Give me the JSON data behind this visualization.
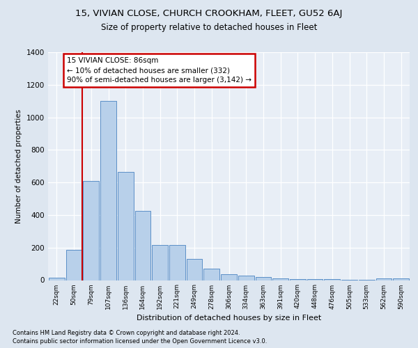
{
  "title1": "15, VIVIAN CLOSE, CHURCH CROOKHAM, FLEET, GU52 6AJ",
  "title2": "Size of property relative to detached houses in Fleet",
  "xlabel": "Distribution of detached houses by size in Fleet",
  "ylabel": "Number of detached properties",
  "categories": [
    "22sqm",
    "50sqm",
    "79sqm",
    "107sqm",
    "136sqm",
    "164sqm",
    "192sqm",
    "221sqm",
    "249sqm",
    "278sqm",
    "306sqm",
    "334sqm",
    "363sqm",
    "391sqm",
    "420sqm",
    "448sqm",
    "476sqm",
    "505sqm",
    "533sqm",
    "562sqm",
    "590sqm"
  ],
  "values": [
    15,
    185,
    610,
    1100,
    665,
    425,
    215,
    215,
    130,
    70,
    38,
    28,
    20,
    12,
    8,
    5,
    5,
    3,
    3,
    10,
    10
  ],
  "bar_color": "#b8d0ea",
  "bar_edge_color": "#5b8fc7",
  "vline_color": "#cc0000",
  "annotation_text": "15 VIVIAN CLOSE: 86sqm\n← 10% of detached houses are smaller (332)\n90% of semi-detached houses are larger (3,142) →",
  "annotation_box_color": "#ffffff",
  "annotation_box_edge": "#cc0000",
  "ylim": [
    0,
    1400
  ],
  "yticks": [
    0,
    200,
    400,
    600,
    800,
    1000,
    1200,
    1400
  ],
  "footer1": "Contains HM Land Registry data © Crown copyright and database right 2024.",
  "footer2": "Contains public sector information licensed under the Open Government Licence v3.0.",
  "bg_color": "#dde6f0",
  "plot_bg_color": "#e8eef6"
}
